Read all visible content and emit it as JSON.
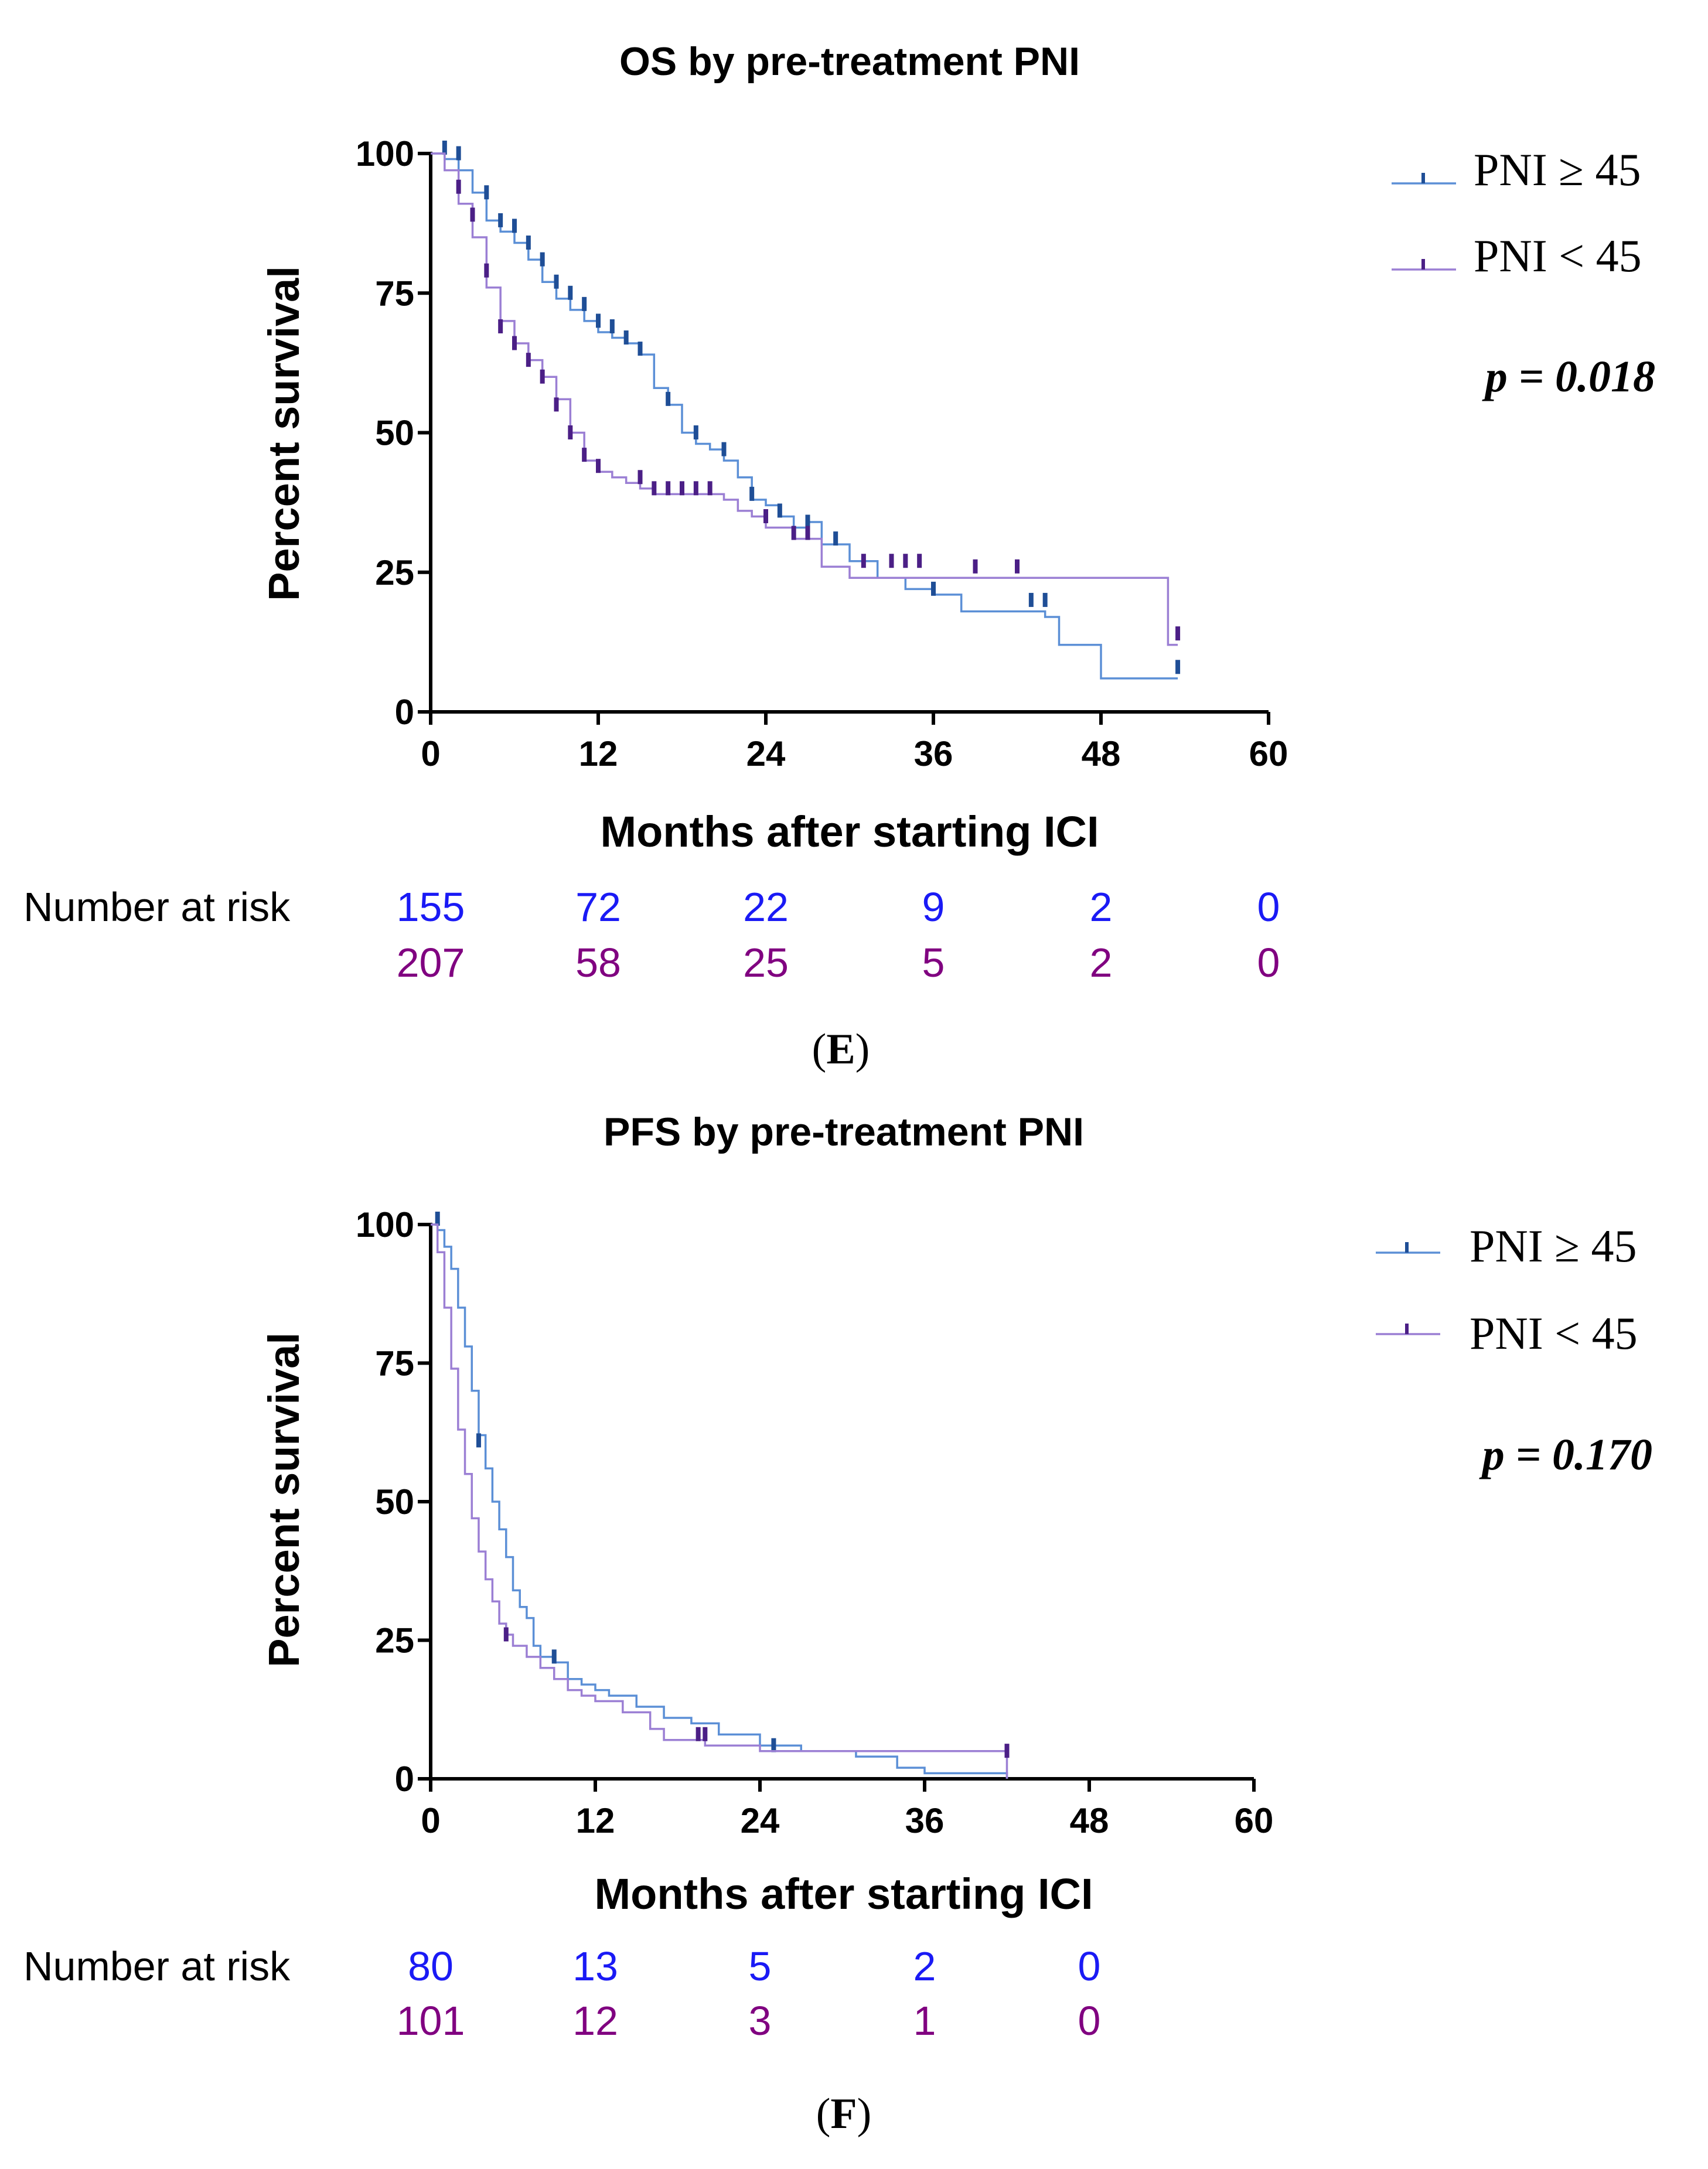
{
  "chart_data": [
    {
      "type": "line",
      "panel": "E",
      "title": "OS by pre-treatment PNI",
      "xlabel": "Months after starting ICI",
      "ylabel": "Percent survival",
      "xlim": [
        0,
        60
      ],
      "ylim": [
        0,
        100
      ],
      "xticks": [
        "0",
        "12",
        "24",
        "36",
        "48",
        "60"
      ],
      "yticks": [
        "0",
        "25",
        "50",
        "75",
        "100"
      ],
      "legend_position": "top-right",
      "p_value": "p = 0.018",
      "series": [
        {
          "name": "PNI ≥ 45",
          "color": "#5b8fd6",
          "censor_color": "#1f4e96",
          "steps": [
            [
              0,
              100
            ],
            [
              1,
              99
            ],
            [
              2,
              97
            ],
            [
              3,
              93
            ],
            [
              4,
              88
            ],
            [
              5,
              86
            ],
            [
              6,
              84
            ],
            [
              7,
              81
            ],
            [
              8,
              77
            ],
            [
              9,
              74
            ],
            [
              10,
              72
            ],
            [
              11,
              70
            ],
            [
              12,
              68
            ],
            [
              13,
              67
            ],
            [
              14,
              66
            ],
            [
              15,
              64
            ],
            [
              16,
              58
            ],
            [
              17,
              55
            ],
            [
              18,
              50
            ],
            [
              19,
              48
            ],
            [
              20,
              47
            ],
            [
              21,
              45
            ],
            [
              22,
              42
            ],
            [
              23,
              38
            ],
            [
              24,
              37
            ],
            [
              25,
              35
            ],
            [
              26,
              33
            ],
            [
              27,
              34
            ],
            [
              28,
              30
            ],
            [
              30,
              27
            ],
            [
              32,
              24
            ],
            [
              34,
              22
            ],
            [
              36,
              21
            ],
            [
              38,
              18
            ],
            [
              44,
              17
            ],
            [
              45,
              12
            ],
            [
              48,
              6
            ],
            [
              53.5,
              6
            ]
          ],
          "censors": [
            [
              1,
              100
            ],
            [
              2,
              99
            ],
            [
              4,
              92
            ],
            [
              5,
              87
            ],
            [
              6,
              86
            ],
            [
              7,
              83
            ],
            [
              8,
              80
            ],
            [
              9,
              76
            ],
            [
              10,
              74
            ],
            [
              11,
              72
            ],
            [
              12,
              69
            ],
            [
              13,
              68
            ],
            [
              14,
              66
            ],
            [
              15,
              64
            ],
            [
              17,
              55
            ],
            [
              19,
              49
            ],
            [
              21,
              46
            ],
            [
              23,
              38
            ],
            [
              25,
              35
            ],
            [
              27,
              33
            ],
            [
              29,
              30
            ],
            [
              36,
              21
            ],
            [
              43,
              19
            ],
            [
              44,
              19
            ],
            [
              53.5,
              7
            ]
          ]
        },
        {
          "name": "PNI < 45",
          "color": "#9b7fd4",
          "censor_color": "#4b1f86",
          "steps": [
            [
              0,
              100
            ],
            [
              1,
              97
            ],
            [
              2,
              91
            ],
            [
              3,
              85
            ],
            [
              4,
              76
            ],
            [
              5,
              70
            ],
            [
              6,
              66
            ],
            [
              7,
              63
            ],
            [
              8,
              60
            ],
            [
              9,
              56
            ],
            [
              10,
              50
            ],
            [
              11,
              45
            ],
            [
              12,
              43
            ],
            [
              13,
              42
            ],
            [
              14,
              41
            ],
            [
              15,
              40
            ],
            [
              16,
              39
            ],
            [
              18,
              39
            ],
            [
              20,
              39
            ],
            [
              21,
              38
            ],
            [
              22,
              36
            ],
            [
              23,
              35
            ],
            [
              24,
              33
            ],
            [
              26,
              31
            ],
            [
              28,
              26
            ],
            [
              30,
              24
            ],
            [
              35,
              24
            ],
            [
              52.5,
              24
            ],
            [
              52.8,
              12
            ],
            [
              53.5,
              12
            ]
          ],
          "censors": [
            [
              2,
              93
            ],
            [
              3,
              88
            ],
            [
              4,
              78
            ],
            [
              5,
              68
            ],
            [
              6,
              65
            ],
            [
              7,
              62
            ],
            [
              8,
              59
            ],
            [
              9,
              54
            ],
            [
              10,
              49
            ],
            [
              11,
              45
            ],
            [
              12,
              43
            ],
            [
              15,
              41
            ],
            [
              16,
              39
            ],
            [
              17,
              39
            ],
            [
              18,
              39
            ],
            [
              19,
              39
            ],
            [
              20,
              39
            ],
            [
              24,
              34
            ],
            [
              26,
              31
            ],
            [
              27,
              31
            ],
            [
              31,
              26
            ],
            [
              33,
              26
            ],
            [
              34,
              26
            ],
            [
              35,
              26
            ],
            [
              39,
              25
            ],
            [
              42,
              25
            ],
            [
              53.5,
              13
            ]
          ]
        }
      ],
      "number_at_risk": {
        "label": "Number at risk",
        "times": [
          "0",
          "12",
          "24",
          "36",
          "48",
          "60"
        ],
        "rows": [
          {
            "color": "#1a1af5",
            "values": [
              "155",
              "72",
              "22",
              "9",
              "2",
              "0"
            ]
          },
          {
            "color": "#800080",
            "values": [
              "207",
              "58",
              "25",
              "5",
              "2",
              "0"
            ]
          }
        ]
      },
      "panel_label": "E"
    },
    {
      "type": "line",
      "panel": "F",
      "title": "PFS by pre-treatment PNI",
      "xlabel": "Months after starting ICI",
      "ylabel": "Percent survival",
      "xlim": [
        0,
        60
      ],
      "ylim": [
        0,
        100
      ],
      "xticks": [
        "0",
        "12",
        "24",
        "36",
        "48",
        "60"
      ],
      "yticks": [
        "0",
        "25",
        "50",
        "75",
        "100"
      ],
      "legend_position": "top-right",
      "p_value": "p = 0.170",
      "series": [
        {
          "name": "PNI ≥ 45",
          "color": "#5b8fd6",
          "censor_color": "#1f4e96",
          "steps": [
            [
              0,
              100
            ],
            [
              0.5,
              99
            ],
            [
              1,
              96
            ],
            [
              1.5,
              92
            ],
            [
              2,
              85
            ],
            [
              2.5,
              78
            ],
            [
              3,
              70
            ],
            [
              3.5,
              62
            ],
            [
              4,
              56
            ],
            [
              4.5,
              50
            ],
            [
              5,
              45
            ],
            [
              5.5,
              40
            ],
            [
              6,
              34
            ],
            [
              6.5,
              31
            ],
            [
              7,
              29
            ],
            [
              7.5,
              24
            ],
            [
              8,
              22
            ],
            [
              9,
              21
            ],
            [
              10,
              18
            ],
            [
              11,
              17
            ],
            [
              12,
              16
            ],
            [
              13,
              15
            ],
            [
              15,
              13
            ],
            [
              17,
              11
            ],
            [
              19,
              10
            ],
            [
              21,
              8
            ],
            [
              24,
              6
            ],
            [
              26,
              6
            ],
            [
              27,
              5
            ],
            [
              31,
              4
            ],
            [
              34,
              2
            ],
            [
              36,
              1
            ],
            [
              42,
              1
            ],
            [
              42,
              0
            ]
          ],
          "censors": [
            [
              0.5,
              100
            ],
            [
              3.5,
              60
            ],
            [
              9,
              21
            ],
            [
              25,
              5
            ]
          ]
        },
        {
          "name": "PNI < 45",
          "color": "#9b7fd4",
          "censor_color": "#4b1f86",
          "steps": [
            [
              0,
              100
            ],
            [
              0.5,
              95
            ],
            [
              1,
              85
            ],
            [
              1.5,
              74
            ],
            [
              2,
              63
            ],
            [
              2.5,
              55
            ],
            [
              3,
              47
            ],
            [
              3.5,
              41
            ],
            [
              4,
              36
            ],
            [
              4.5,
              32
            ],
            [
              5,
              28
            ],
            [
              5.5,
              26
            ],
            [
              6,
              24
            ],
            [
              7,
              22
            ],
            [
              8,
              20
            ],
            [
              9,
              18
            ],
            [
              10,
              16
            ],
            [
              11,
              15
            ],
            [
              12,
              14
            ],
            [
              14,
              12
            ],
            [
              16,
              9
            ],
            [
              17,
              7
            ],
            [
              20,
              6
            ],
            [
              24,
              5
            ],
            [
              25,
              5
            ],
            [
              27,
              5
            ],
            [
              30,
              5
            ],
            [
              42,
              4
            ],
            [
              42,
              0
            ]
          ],
          "censors": [
            [
              5.5,
              25
            ],
            [
              19.5,
              7
            ],
            [
              20,
              7
            ],
            [
              42,
              4
            ]
          ]
        }
      ],
      "number_at_risk": {
        "label": "Number at risk",
        "times": [
          "0",
          "12",
          "24",
          "36",
          "48"
        ],
        "rows": [
          {
            "color": "#1a1af5",
            "values": [
              "80",
              "13",
              "5",
              "2",
              "0"
            ]
          },
          {
            "color": "#800080",
            "values": [
              "101",
              "12",
              "3",
              "1",
              "0"
            ]
          }
        ]
      },
      "panel_label": "F"
    }
  ]
}
